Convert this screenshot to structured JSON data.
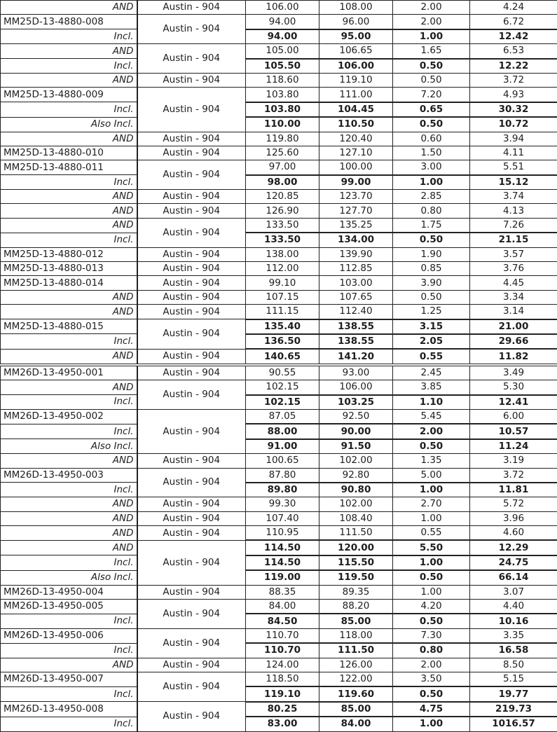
{
  "table": {
    "sections": [
      {
        "groups": [
          {
            "location": "Austin - 904",
            "rows": [
              {
                "label": "AND",
                "from": "106.00",
                "to": "108.00",
                "interval": "2.00",
                "grade": "4.24",
                "bold": false
              }
            ]
          },
          {
            "location": "Austin - 904",
            "rows": [
              {
                "label": "MM25D-13-4880-008",
                "from": "94.00",
                "to": "96.00",
                "interval": "2.00",
                "grade": "6.72",
                "bold": false
              },
              {
                "label": "Incl.",
                "from": "94.00",
                "to": "95.00",
                "interval": "1.00",
                "grade": "12.42",
                "bold": true
              }
            ]
          },
          {
            "location": "Austin - 904",
            "rows": [
              {
                "label": "AND",
                "from": "105.00",
                "to": "106.65",
                "interval": "1.65",
                "grade": "6.53",
                "bold": false
              },
              {
                "label": "Incl.",
                "from": "105.50",
                "to": "106.00",
                "interval": "0.50",
                "grade": "12.22",
                "bold": true
              }
            ]
          },
          {
            "location": "Austin - 904",
            "rows": [
              {
                "label": "AND",
                "from": "118.60",
                "to": "119.10",
                "interval": "0.50",
                "grade": "3.72",
                "bold": false
              }
            ]
          },
          {
            "location": "Austin - 904",
            "rows": [
              {
                "label": "MM25D-13-4880-009",
                "from": "103.80",
                "to": "111.00",
                "interval": "7.20",
                "grade": "4.93",
                "bold": false
              },
              {
                "label": "Incl.",
                "from": "103.80",
                "to": "104.45",
                "interval": "0.65",
                "grade": "30.32",
                "bold": true
              },
              {
                "label": "Also Incl.",
                "from": "110.00",
                "to": "110.50",
                "interval": "0.50",
                "grade": "10.72",
                "bold": true
              }
            ]
          },
          {
            "location": "Austin - 904",
            "rows": [
              {
                "label": "AND",
                "from": "119.80",
                "to": "120.40",
                "interval": "0.60",
                "grade": "3.94",
                "bold": false
              }
            ]
          },
          {
            "location": "Austin - 904",
            "rows": [
              {
                "label": "MM25D-13-4880-010",
                "from": "125.60",
                "to": "127.10",
                "interval": "1.50",
                "grade": "4.11",
                "bold": false
              }
            ]
          },
          {
            "location": "Austin - 904",
            "rows": [
              {
                "label": "MM25D-13-4880-011",
                "from": "97.00",
                "to": "100.00",
                "interval": "3.00",
                "grade": "5.51",
                "bold": false
              },
              {
                "label": "Incl.",
                "from": "98.00",
                "to": "99.00",
                "interval": "1.00",
                "grade": "15.12",
                "bold": true
              }
            ]
          },
          {
            "location": "Austin - 904",
            "rows": [
              {
                "label": "AND",
                "from": "120.85",
                "to": "123.70",
                "interval": "2.85",
                "grade": "3.74",
                "bold": false
              }
            ]
          },
          {
            "location": "Austin - 904",
            "rows": [
              {
                "label": "AND",
                "from": "126.90",
                "to": "127.70",
                "interval": "0.80",
                "grade": "4.13",
                "bold": false
              }
            ]
          },
          {
            "location": "Austin - 904",
            "rows": [
              {
                "label": "AND",
                "from": "133.50",
                "to": "135.25",
                "interval": "1.75",
                "grade": "7.26",
                "bold": false
              },
              {
                "label": "Incl.",
                "from": "133.50",
                "to": "134.00",
                "interval": "0.50",
                "grade": "21.15",
                "bold": true
              }
            ]
          },
          {
            "location": "Austin - 904",
            "rows": [
              {
                "label": "MM25D-13-4880-012",
                "from": "138.00",
                "to": "139.90",
                "interval": "1.90",
                "grade": "3.57",
                "bold": false
              }
            ]
          },
          {
            "location": "Austin - 904",
            "rows": [
              {
                "label": "MM25D-13-4880-013",
                "from": "112.00",
                "to": "112.85",
                "interval": "0.85",
                "grade": "3.76",
                "bold": false
              }
            ]
          },
          {
            "location": "Austin - 904",
            "rows": [
              {
                "label": "MM25D-13-4880-014",
                "from": "99.10",
                "to": "103.00",
                "interval": "3.90",
                "grade": "4.45",
                "bold": false
              }
            ]
          },
          {
            "location": "Austin - 904",
            "rows": [
              {
                "label": "AND",
                "from": "107.15",
                "to": "107.65",
                "interval": "0.50",
                "grade": "3.34",
                "bold": false
              }
            ]
          },
          {
            "location": "Austin - 904",
            "rows": [
              {
                "label": "AND",
                "from": "111.15",
                "to": "112.40",
                "interval": "1.25",
                "grade": "3.14",
                "bold": false
              }
            ]
          },
          {
            "location": "Austin - 904",
            "rows": [
              {
                "label": "MM25D-13-4880-015",
                "from": "135.40",
                "to": "138.55",
                "interval": "3.15",
                "grade": "21.00",
                "bold": true
              },
              {
                "label": "Incl.",
                "from": "136.50",
                "to": "138.55",
                "interval": "2.05",
                "grade": "29.66",
                "bold": true
              }
            ]
          },
          {
            "location": "Austin - 904",
            "rows": [
              {
                "label": "AND",
                "from": "140.65",
                "to": "141.20",
                "interval": "0.55",
                "grade": "11.82",
                "bold": true
              }
            ]
          }
        ]
      },
      {
        "groups": [
          {
            "location": "Austin - 904",
            "rows": [
              {
                "label": "MM26D-13-4950-001",
                "from": "90.55",
                "to": "93.00",
                "interval": "2.45",
                "grade": "3.49",
                "bold": false
              }
            ]
          },
          {
            "location": "Austin - 904",
            "rows": [
              {
                "label": "AND",
                "from": "102.15",
                "to": "106.00",
                "interval": "3.85",
                "grade": "5.30",
                "bold": false
              },
              {
                "label": "Incl.",
                "from": "102.15",
                "to": "103.25",
                "interval": "1.10",
                "grade": "12.41",
                "bold": true
              }
            ]
          },
          {
            "location": "Austin - 904",
            "rows": [
              {
                "label": "MM26D-13-4950-002",
                "from": "87.05",
                "to": "92.50",
                "interval": "5.45",
                "grade": "6.00",
                "bold": false
              },
              {
                "label": "Incl.",
                "from": "88.00",
                "to": "90.00",
                "interval": "2.00",
                "grade": "10.57",
                "bold": true
              },
              {
                "label": "Also Incl.",
                "from": "91.00",
                "to": "91.50",
                "interval": "0.50",
                "grade": "11.24",
                "bold": true
              }
            ]
          },
          {
            "location": "Austin - 904",
            "rows": [
              {
                "label": "AND",
                "from": "100.65",
                "to": "102.00",
                "interval": "1.35",
                "grade": "3.19",
                "bold": false
              }
            ]
          },
          {
            "location": "Austin - 904",
            "rows": [
              {
                "label": "MM26D-13-4950-003",
                "from": "87.80",
                "to": "92.80",
                "interval": "5.00",
                "grade": "3.72",
                "bold": false
              },
              {
                "label": "Incl.",
                "from": "89.80",
                "to": "90.80",
                "interval": "1.00",
                "grade": "11.81",
                "bold": true
              }
            ]
          },
          {
            "location": "Austin - 904",
            "rows": [
              {
                "label": "AND",
                "from": "99.30",
                "to": "102.00",
                "interval": "2.70",
                "grade": "5.72",
                "bold": false
              }
            ]
          },
          {
            "location": "Austin - 904",
            "rows": [
              {
                "label": "AND",
                "from": "107.40",
                "to": "108.40",
                "interval": "1.00",
                "grade": "3.96",
                "bold": false
              }
            ]
          },
          {
            "location": "Austin - 904",
            "rows": [
              {
                "label": "AND",
                "from": "110.95",
                "to": "111.50",
                "interval": "0.55",
                "grade": "4.60",
                "bold": false
              }
            ]
          },
          {
            "location": "Austin - 904",
            "rows": [
              {
                "label": "AND",
                "from": "114.50",
                "to": "120.00",
                "interval": "5.50",
                "grade": "12.29",
                "bold": true
              },
              {
                "label": "Incl.",
                "from": "114.50",
                "to": "115.50",
                "interval": "1.00",
                "grade": "24.75",
                "bold": true
              },
              {
                "label": "Also Incl.",
                "from": "119.00",
                "to": "119.50",
                "interval": "0.50",
                "grade": "66.14",
                "bold": true
              }
            ]
          },
          {
            "location": "Austin - 904",
            "rows": [
              {
                "label": "MM26D-13-4950-004",
                "from": "88.35",
                "to": "89.35",
                "interval": "1.00",
                "grade": "3.07",
                "bold": false
              }
            ]
          },
          {
            "location": "Austin - 904",
            "rows": [
              {
                "label": "MM26D-13-4950-005",
                "from": "84.00",
                "to": "88.20",
                "interval": "4.20",
                "grade": "4.40",
                "bold": false
              },
              {
                "label": "Incl.",
                "from": "84.50",
                "to": "85.00",
                "interval": "0.50",
                "grade": "10.16",
                "bold": true
              }
            ]
          },
          {
            "location": "Austin - 904",
            "rows": [
              {
                "label": "MM26D-13-4950-006",
                "from": "110.70",
                "to": "118.00",
                "interval": "7.30",
                "grade": "3.35",
                "bold": false
              },
              {
                "label": "Incl.",
                "from": "110.70",
                "to": "111.50",
                "interval": "0.80",
                "grade": "16.58",
                "bold": true
              }
            ]
          },
          {
            "location": "Austin - 904",
            "rows": [
              {
                "label": "AND",
                "from": "124.00",
                "to": "126.00",
                "interval": "2.00",
                "grade": "8.50",
                "bold": false
              }
            ]
          },
          {
            "location": "Austin - 904",
            "rows": [
              {
                "label": "MM26D-13-4950-007",
                "from": "118.50",
                "to": "122.00",
                "interval": "3.50",
                "grade": "5.15",
                "bold": false
              },
              {
                "label": "Incl.",
                "from": "119.10",
                "to": "119.60",
                "interval": "0.50",
                "grade": "19.77",
                "bold": true
              }
            ]
          },
          {
            "location": "Austin - 904",
            "rows": [
              {
                "label": "MM26D-13-4950-008",
                "from": "80.25",
                "to": "85.00",
                "interval": "4.75",
                "grade": "219.73",
                "bold": true
              },
              {
                "label": "Incl.",
                "from": "83.00",
                "to": "84.00",
                "interval": "1.00",
                "grade": "1016.57",
                "bold": true
              }
            ]
          }
        ]
      }
    ]
  }
}
